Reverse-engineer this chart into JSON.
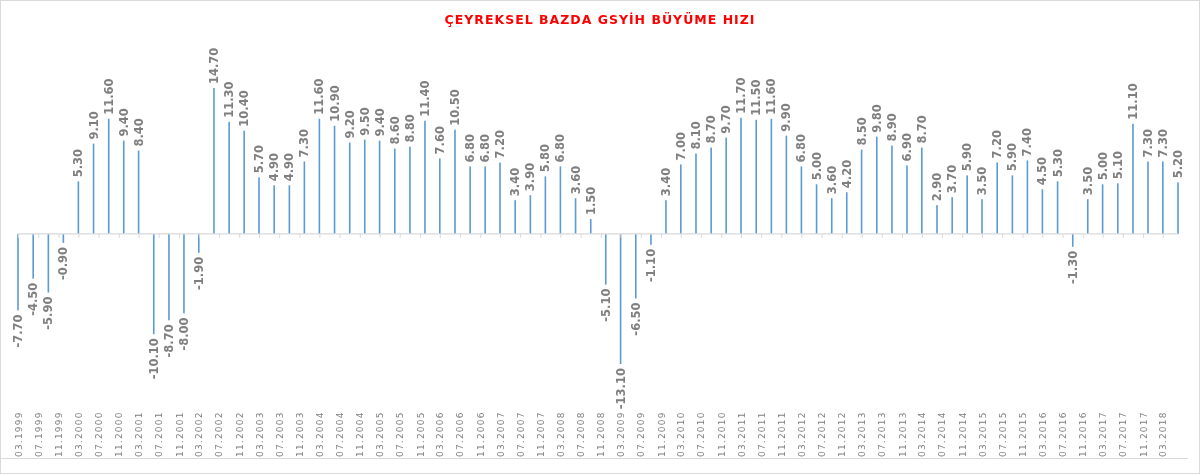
{
  "chart_data": {
    "type": "bar",
    "title": "ÇEYREKSEL BAZDA GSYİH BÜYÜME HIZI",
    "color": "#5b9bd5",
    "x": [
      "1999-03",
      "1999-06",
      "1999-09",
      "1999-12",
      "2000-03",
      "2000-06",
      "2000-09",
      "2000-12",
      "2001-03",
      "2001-06",
      "2001-09",
      "2001-12",
      "2002-03",
      "2002-06",
      "2002-09",
      "2002-12",
      "2003-03",
      "2003-06",
      "2003-09",
      "2003-12",
      "2004-03",
      "2004-06",
      "2004-09",
      "2004-12",
      "2005-03",
      "2005-06",
      "2005-09",
      "2005-12",
      "2006-03",
      "2006-06",
      "2006-09",
      "2006-12",
      "2007-03",
      "2007-06",
      "2007-09",
      "2007-12",
      "2008-03",
      "2008-06",
      "2008-09",
      "2008-12",
      "2009-03",
      "2009-06",
      "2009-09",
      "2009-12",
      "2010-03",
      "2010-06",
      "2010-09",
      "2010-12",
      "2011-03",
      "2011-06",
      "2011-09",
      "2011-12",
      "2012-03",
      "2012-06",
      "2012-09",
      "2012-12",
      "2013-03",
      "2013-06",
      "2013-09",
      "2013-12",
      "2014-03",
      "2014-06",
      "2014-09",
      "2014-12",
      "2015-03",
      "2015-06",
      "2015-09",
      "2015-12",
      "2016-03",
      "2016-06",
      "2016-09",
      "2016-12",
      "2017-03",
      "2017-06",
      "2017-09",
      "2017-12",
      "2018-03",
      "2018-06"
    ],
    "values": [
      -7.7,
      -4.5,
      -5.9,
      -0.9,
      5.3,
      9.1,
      11.6,
      9.4,
      8.4,
      -10.1,
      -8.7,
      -8.0,
      -1.9,
      14.7,
      11.3,
      10.4,
      5.7,
      4.9,
      4.9,
      7.3,
      11.6,
      10.9,
      9.2,
      9.5,
      9.4,
      8.6,
      8.8,
      11.4,
      7.6,
      10.5,
      6.8,
      6.8,
      7.2,
      3.4,
      3.9,
      5.8,
      6.8,
      3.6,
      1.5,
      -5.1,
      -13.1,
      -6.5,
      -1.1,
      3.4,
      7.0,
      8.1,
      8.7,
      9.7,
      11.7,
      11.5,
      11.6,
      9.9,
      6.8,
      5.0,
      3.6,
      4.2,
      8.5,
      9.8,
      8.9,
      6.9,
      8.7,
      2.9,
      3.7,
      5.9,
      3.5,
      7.2,
      5.9,
      7.4,
      4.5,
      5.3,
      -1.3,
      3.5,
      5.0,
      5.1,
      11.1,
      7.3,
      7.3,
      5.2
    ],
    "value_labels": [
      "-7.70",
      "-4.50",
      "-5.90",
      "-0.90",
      "5.30",
      "9.10",
      "11.60",
      "9.40",
      "8.40",
      "-10.10",
      "-8.70",
      "-8.00",
      "-1.90",
      "14.70",
      "11.30",
      "10.40",
      "5.70",
      "4.90",
      "4.90",
      "7.30",
      "11.60",
      "10.90",
      "9.20",
      "9.50",
      "9.40",
      "8.60",
      "8.80",
      "11.40",
      "7.60",
      "10.50",
      "6.80",
      "6.80",
      "7.20",
      "3.40",
      "3.90",
      "5.80",
      "6.80",
      "3.60",
      "1.50",
      "-5.10",
      "-13.10",
      "-6.50",
      "-1.10",
      "3.40",
      "7.00",
      "8.10",
      "8.70",
      "9.70",
      "11.70",
      "11.50",
      "11.60",
      "9.90",
      "6.80",
      "5.00",
      "3.60",
      "4.20",
      "8.50",
      "9.80",
      "8.90",
      "6.90",
      "8.70",
      "2.90",
      "3.70",
      "5.90",
      "3.50",
      "7.20",
      "5.90",
      "7.40",
      "4.50",
      "5.30",
      "-1.30",
      "3.50",
      "5.00",
      "5.10",
      "11.10",
      "7.30",
      "7.30",
      "5.20"
    ],
    "xlim": [
      "1999-03",
      "2018-06"
    ],
    "ref_lines": [
      {
        "axis": "y",
        "value": 0,
        "color": "#d9d9d9"
      }
    ],
    "xticks": [
      {
        "value": "1999-03",
        "label": "03.1999"
      },
      {
        "value": "1999-07",
        "label": "07.1999"
      },
      {
        "value": "1999-11",
        "label": "11.1999"
      },
      {
        "value": "2000-03",
        "label": "03.2000"
      },
      {
        "value": "2000-07",
        "label": "07.2000"
      },
      {
        "value": "2000-11",
        "label": "11.2000"
      },
      {
        "value": "2001-03",
        "label": "03.2001"
      },
      {
        "value": "2001-07",
        "label": "07.2001"
      },
      {
        "value": "2001-11",
        "label": "11.2001"
      },
      {
        "value": "2002-03",
        "label": "03.2002"
      },
      {
        "value": "2002-07",
        "label": "07.2002"
      },
      {
        "value": "2002-11",
        "label": "11.2002"
      },
      {
        "value": "2003-03",
        "label": "03.2003"
      },
      {
        "value": "2003-07",
        "label": "07.2003"
      },
      {
        "value": "2003-11",
        "label": "11.2003"
      },
      {
        "value": "2004-03",
        "label": "03.2004"
      },
      {
        "value": "2004-07",
        "label": "07.2004"
      },
      {
        "value": "2004-11",
        "label": "11.2004"
      },
      {
        "value": "2005-03",
        "label": "03.2005"
      },
      {
        "value": "2005-07",
        "label": "07.2005"
      },
      {
        "value": "2005-11",
        "label": "11.2005"
      },
      {
        "value": "2006-03",
        "label": "03.2006"
      },
      {
        "value": "2006-07",
        "label": "07.2006"
      },
      {
        "value": "2006-11",
        "label": "11.2006"
      },
      {
        "value": "2007-03",
        "label": "03.2007"
      },
      {
        "value": "2007-07",
        "label": "07.2007"
      },
      {
        "value": "2007-11",
        "label": "11.2007"
      },
      {
        "value": "2008-03",
        "label": "03.2008"
      },
      {
        "value": "2008-07",
        "label": "07.2008"
      },
      {
        "value": "2008-11",
        "label": "11.2008"
      },
      {
        "value": "2009-03",
        "label": "03.2009"
      },
      {
        "value": "2009-07",
        "label": "07.2009"
      },
      {
        "value": "2009-11",
        "label": "11.2009"
      },
      {
        "value": "2010-03",
        "label": "03.2010"
      },
      {
        "value": "2010-07",
        "label": "07.2010"
      },
      {
        "value": "2010-11",
        "label": "11.2010"
      },
      {
        "value": "2011-03",
        "label": "03.2011"
      },
      {
        "value": "2011-07",
        "label": "07.2011"
      },
      {
        "value": "2011-11",
        "label": "11.2011"
      },
      {
        "value": "2012-03",
        "label": "03.2012"
      },
      {
        "value": "2012-07",
        "label": "07.2012"
      },
      {
        "value": "2012-11",
        "label": "11.2012"
      },
      {
        "value": "2013-03",
        "label": "03.2013"
      },
      {
        "value": "2013-07",
        "label": "07.2013"
      },
      {
        "value": "2013-11",
        "label": "11.2013"
      },
      {
        "value": "2014-03",
        "label": "03.2014"
      },
      {
        "value": "2014-07",
        "label": "07.2014"
      },
      {
        "value": "2014-11",
        "label": "11.2014"
      },
      {
        "value": "2015-03",
        "label": "03.2015"
      },
      {
        "value": "2015-07",
        "label": "07.2015"
      },
      {
        "value": "2015-11",
        "label": "11.2015"
      },
      {
        "value": "2016-03",
        "label": "03.2016"
      },
      {
        "value": "2016-07",
        "label": "07.2016"
      },
      {
        "value": "2016-11",
        "label": "11.2016"
      },
      {
        "value": "2017-03",
        "label": "03.2017"
      },
      {
        "value": "2017-07",
        "label": "07.2017"
      },
      {
        "value": "2017-11",
        "label": "11.2017"
      },
      {
        "value": "2018-03",
        "label": "03.2018"
      }
    ]
  }
}
